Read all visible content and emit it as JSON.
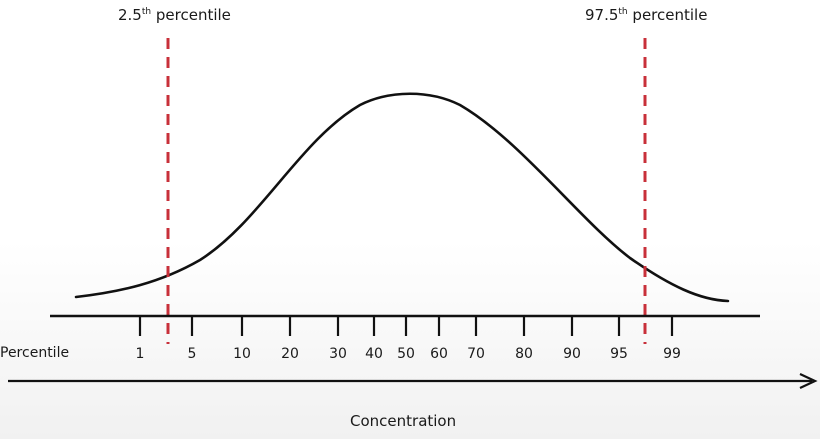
{
  "diagram": {
    "markers": {
      "lower": {
        "value": "2.5",
        "suffix": "th",
        "word": "percentile"
      },
      "upper": {
        "value": "97.5",
        "suffix": "th",
        "word": "percentile"
      }
    },
    "percentile_axis": {
      "label": "Percentile",
      "ticks": [
        "1",
        "5",
        "10",
        "20",
        "30",
        "40",
        "50",
        "60",
        "70",
        "80",
        "90",
        "95",
        "99"
      ]
    },
    "concentration_axis": {
      "label": "Concentration"
    },
    "colors": {
      "curve": "#111111",
      "marker": "#c8303a",
      "axis": "#111111"
    }
  }
}
